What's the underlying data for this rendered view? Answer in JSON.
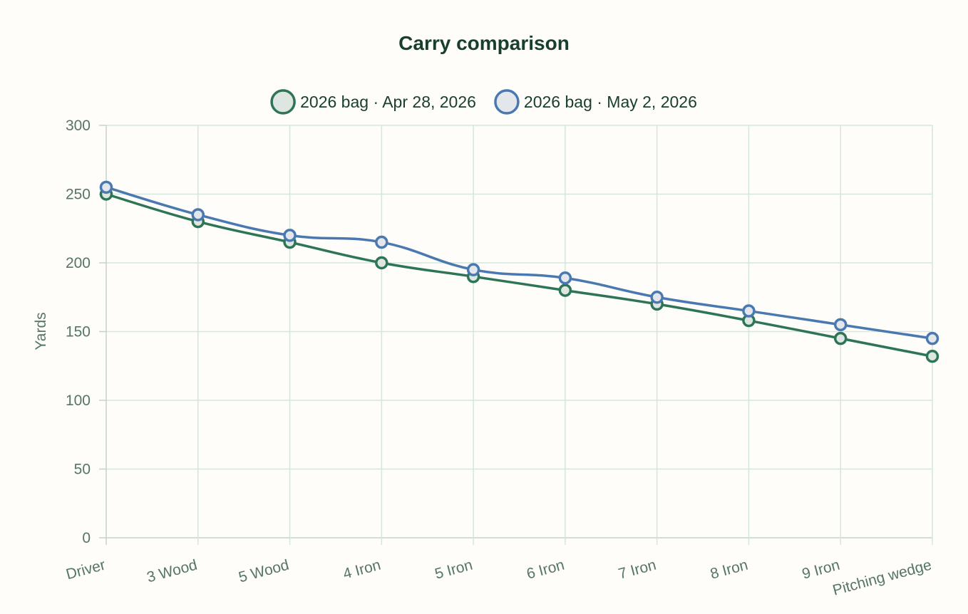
{
  "chart_data": {
    "type": "line",
    "title": "Carry comparison",
    "xlabel": "",
    "ylabel": "Yards",
    "ylim": [
      0,
      300
    ],
    "yticks": [
      0,
      50,
      100,
      150,
      200,
      250,
      300
    ],
    "grid": true,
    "legend_position": "top",
    "categories": [
      "Driver",
      "3 Wood",
      "5 Wood",
      "4 Iron",
      "5 Iron",
      "6 Iron",
      "7 Iron",
      "8 Iron",
      "9 Iron",
      "Pitching wedge"
    ],
    "series": [
      {
        "name": "2026 bag · Apr 28, 2026",
        "color": "#2e7556",
        "fill": "#dde6e1",
        "values": [
          250,
          230,
          215,
          200,
          190,
          180,
          170,
          158,
          145,
          132
        ]
      },
      {
        "name": "2026 bag · May 2, 2026",
        "color": "#4a78b0",
        "fill": "#e3e7ec",
        "values": [
          255,
          235,
          220,
          215,
          195,
          189,
          175,
          165,
          155,
          145
        ]
      }
    ]
  }
}
